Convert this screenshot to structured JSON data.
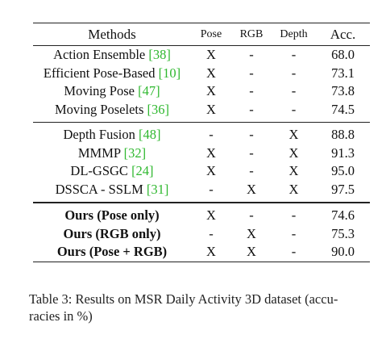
{
  "table": {
    "headers": {
      "methods": "Methods",
      "pose": "Pose",
      "rgb": "RGB",
      "depth": "Depth",
      "acc": "Acc."
    },
    "groups": [
      [
        {
          "method": "Action Ensemble ",
          "cite": "[38]",
          "pose": "X",
          "rgb": "-",
          "depth": "-",
          "acc": "68.0"
        },
        {
          "method": "Efficient Pose-Based ",
          "cite": "[10]",
          "pose": "X",
          "rgb": "-",
          "depth": "-",
          "acc": "73.1"
        },
        {
          "method": "Moving Pose ",
          "cite": "[47]",
          "pose": "X",
          "rgb": "-",
          "depth": "-",
          "acc": "73.8"
        },
        {
          "method": "Moving Poselets ",
          "cite": "[36]",
          "pose": "X",
          "rgb": "-",
          "depth": "-",
          "acc": "74.5"
        }
      ],
      [
        {
          "method": "Depth Fusion ",
          "cite": "[48]",
          "pose": "-",
          "rgb": "-",
          "depth": "X",
          "acc": "88.8"
        },
        {
          "method": "MMMP ",
          "cite": "[32]",
          "pose": "X",
          "rgb": "-",
          "depth": "X",
          "acc": "91.3"
        },
        {
          "method": "DL-GSGC ",
          "cite": "[24]",
          "pose": "X",
          "rgb": "-",
          "depth": "X",
          "acc": "95.0"
        },
        {
          "method": "DSSCA - SSLM ",
          "cite": "[31]",
          "pose": "-",
          "rgb": "X",
          "depth": "X",
          "acc": "97.5"
        }
      ],
      [
        {
          "method": "Ours (Pose only)",
          "cite": "",
          "pose": "X",
          "rgb": "-",
          "depth": "-",
          "acc": "74.6"
        },
        {
          "method": "Ours (RGB only)",
          "cite": "",
          "pose": "-",
          "rgb": "X",
          "depth": "-",
          "acc": "75.3"
        },
        {
          "method": "Ours (Pose + RGB)",
          "cite": "",
          "pose": "X",
          "rgb": "X",
          "depth": "-",
          "acc": "90.0"
        }
      ]
    ]
  },
  "caption": {
    "line1": "Table 3: Results on MSR Daily Activity 3D dataset (accu-",
    "line2": "racies in %)"
  },
  "colors": {
    "citation": "#2fb82f",
    "text": "#111111"
  }
}
